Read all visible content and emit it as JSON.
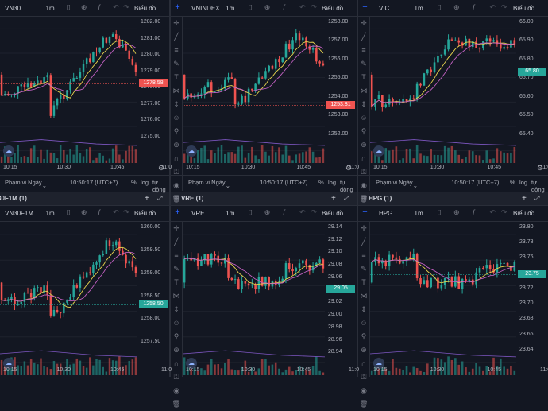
{
  "colors": {
    "up": "#26a69a",
    "down": "#ef5350",
    "ma1": "#e8d44d",
    "ma2": "#c060c0",
    "ma3": "#ffffff",
    "bg": "#131722"
  },
  "common": {
    "interval": "1m",
    "chart_type_label": "Biểu đồ",
    "range_label": "Phạm vi Ngày",
    "clock": "10:50:17 (UTC+7)",
    "percent": "%",
    "log": "log",
    "auto": "tự động",
    "time_ticks": [
      "10:15",
      "10:30",
      "10:45"
    ],
    "time_cut": "11:0"
  },
  "headers": [
    {
      "title": "30F1M (1)"
    },
    {
      "title": "VRE (1)"
    },
    {
      "title": "HPG (1)"
    }
  ],
  "charts": [
    {
      "symbol": "VN30",
      "ticks": [
        "1281.00",
        "1280.00",
        "1279.00",
        "1278.00",
        "1277.00",
        "1276.00",
        "1275.00"
      ],
      "top_tick": "1282.00",
      "last": "1278.58",
      "last_color": "#ef5350"
    },
    {
      "symbol": "VNINDEX",
      "ticks": [
        "1257.00",
        "1256.00",
        "1255.00",
        "1254.00",
        "1253.00",
        "1252.00"
      ],
      "top_tick": "1258.00",
      "last": "1253.81",
      "last_color": "#ef5350"
    },
    {
      "symbol": "VIC",
      "ticks": [
        "65.90",
        "65.80",
        "65.70",
        "65.60",
        "65.50",
        "65.40"
      ],
      "top_tick": "66.00",
      "last": "65.80",
      "last_color": "#26a69a"
    },
    {
      "symbol": "VN30F1M",
      "ticks": [
        "1259.50",
        "1259.00",
        "1258.50",
        "1258.00",
        "1257.50"
      ],
      "top_tick": "1260.00",
      "last": "1258.50",
      "last_color": "#26a69a"
    },
    {
      "symbol": "VRE",
      "ticks": [
        "29.14",
        "29.12",
        "29.10",
        "29.08",
        "29.06",
        "29.04",
        "29.02",
        "29.00",
        "28.98",
        "28.96",
        "28.94"
      ],
      "top_tick": "",
      "last": "29.05",
      "last_color": "#26a69a"
    },
    {
      "symbol": "HPG",
      "ticks": [
        "23.80",
        "23.78",
        "23.76",
        "23.74",
        "23.72",
        "23.70",
        "23.68",
        "23.66",
        "23.64"
      ],
      "top_tick": "",
      "last": "23.75",
      "last_color": "#26a69a"
    }
  ]
}
